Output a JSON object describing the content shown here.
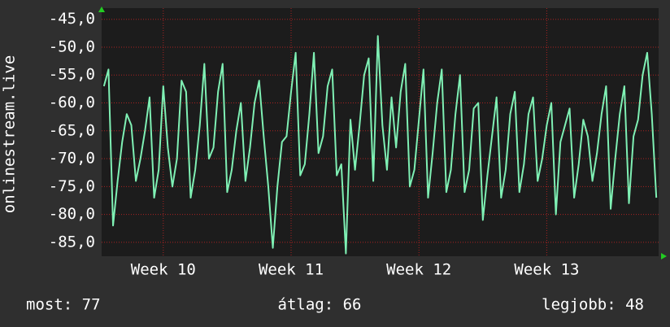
{
  "chart_data": {
    "type": "line",
    "y_label": "onlinestream.live",
    "categories": [
      null,
      null,
      null,
      null,
      null,
      null,
      null,
      null,
      null,
      null,
      null,
      null,
      null,
      "Week 10",
      null,
      null,
      null,
      null,
      null,
      null,
      null,
      null,
      null,
      null,
      null,
      null,
      null,
      null,
      null,
      null,
      null,
      null,
      null,
      null,
      null,
      null,
      null,
      null,
      null,
      null,
      null,
      "Week 11",
      null,
      null,
      null,
      null,
      null,
      null,
      null,
      null,
      null,
      null,
      null,
      null,
      null,
      null,
      null,
      null,
      null,
      null,
      null,
      null,
      null,
      null,
      null,
      null,
      null,
      null,
      null,
      "Week 12",
      null,
      null,
      null,
      null,
      null,
      null,
      null,
      null,
      null,
      null,
      null,
      null,
      null,
      null,
      null,
      null,
      null,
      null,
      null,
      null,
      null,
      null,
      null,
      null,
      null,
      null,
      null,
      "Week 13",
      null,
      null,
      null,
      null,
      null,
      null,
      null,
      null,
      null,
      null,
      null,
      null,
      null,
      null,
      null,
      null,
      null,
      null,
      null,
      null,
      null,
      null,
      null,
      null
    ],
    "series": [
      {
        "color": "#7ff0b4",
        "values": [
          -57,
          -54,
          -82,
          -74,
          -67,
          -62,
          -64,
          -74,
          -70,
          -65,
          -59,
          -77,
          -72,
          -57,
          -68,
          -75,
          -70,
          -56,
          -58,
          -77,
          -72,
          -64,
          -53,
          -70,
          -68,
          -58,
          -53,
          -76,
          -72,
          -65,
          -60,
          -74,
          -68,
          -60,
          -56,
          -66,
          -75,
          -86,
          -75,
          -67,
          -66,
          -58,
          -51,
          -73,
          -71,
          -62,
          -51,
          -69,
          -66,
          -57,
          -54,
          -73,
          -71,
          -87,
          -63,
          -72,
          -64,
          -55,
          -52,
          -74,
          -48,
          -64,
          -72,
          -59,
          -68,
          -58,
          -53,
          -75,
          -72,
          -63,
          -54,
          -77,
          -69,
          -60,
          -54,
          -76,
          -72,
          -62,
          -55,
          -76,
          -72,
          -61,
          -60,
          -81,
          -73,
          -66,
          -59,
          -77,
          -72,
          -62,
          -58,
          -76,
          -71,
          -62,
          -59,
          -74,
          -70,
          -64,
          -60,
          -80,
          -67,
          -64,
          -61,
          -77,
          -71,
          -63,
          -66,
          -74,
          -69,
          -62,
          -57,
          -79,
          -70,
          -62,
          -57,
          -78,
          -66,
          -63,
          -55,
          -51,
          -62,
          -77
        ]
      }
    ],
    "ylim": [
      -87.5,
      -43
    ],
    "yticks": [
      {
        "value": -45,
        "label": "-45,0"
      },
      {
        "value": -50,
        "label": "-50,0"
      },
      {
        "value": -55,
        "label": "-55,0"
      },
      {
        "value": -60,
        "label": "-60,0"
      },
      {
        "value": -65,
        "label": "-65,0"
      },
      {
        "value": -70,
        "label": "-70,0"
      },
      {
        "value": -75,
        "label": "-75,0"
      },
      {
        "value": -80,
        "label": "-80,0"
      },
      {
        "value": -85,
        "label": "-85,0"
      }
    ],
    "grid": true,
    "footer": [
      "most: 77",
      "átlag: 66",
      "legjobb: 48"
    ]
  }
}
